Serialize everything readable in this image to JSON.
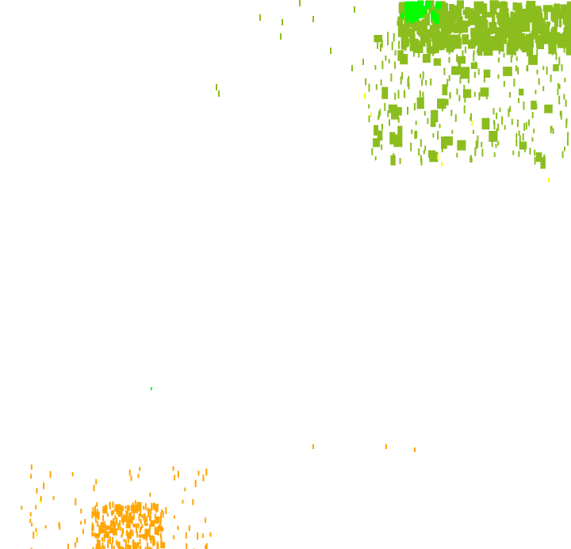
{
  "map": {
    "layer": "precipitation-intensity-overlay",
    "colors": {
      "light": "#8bbd1f",
      "moderate_green": "#00ff00",
      "yellow": "#ffff00",
      "orange": "#ffa500"
    }
  }
}
